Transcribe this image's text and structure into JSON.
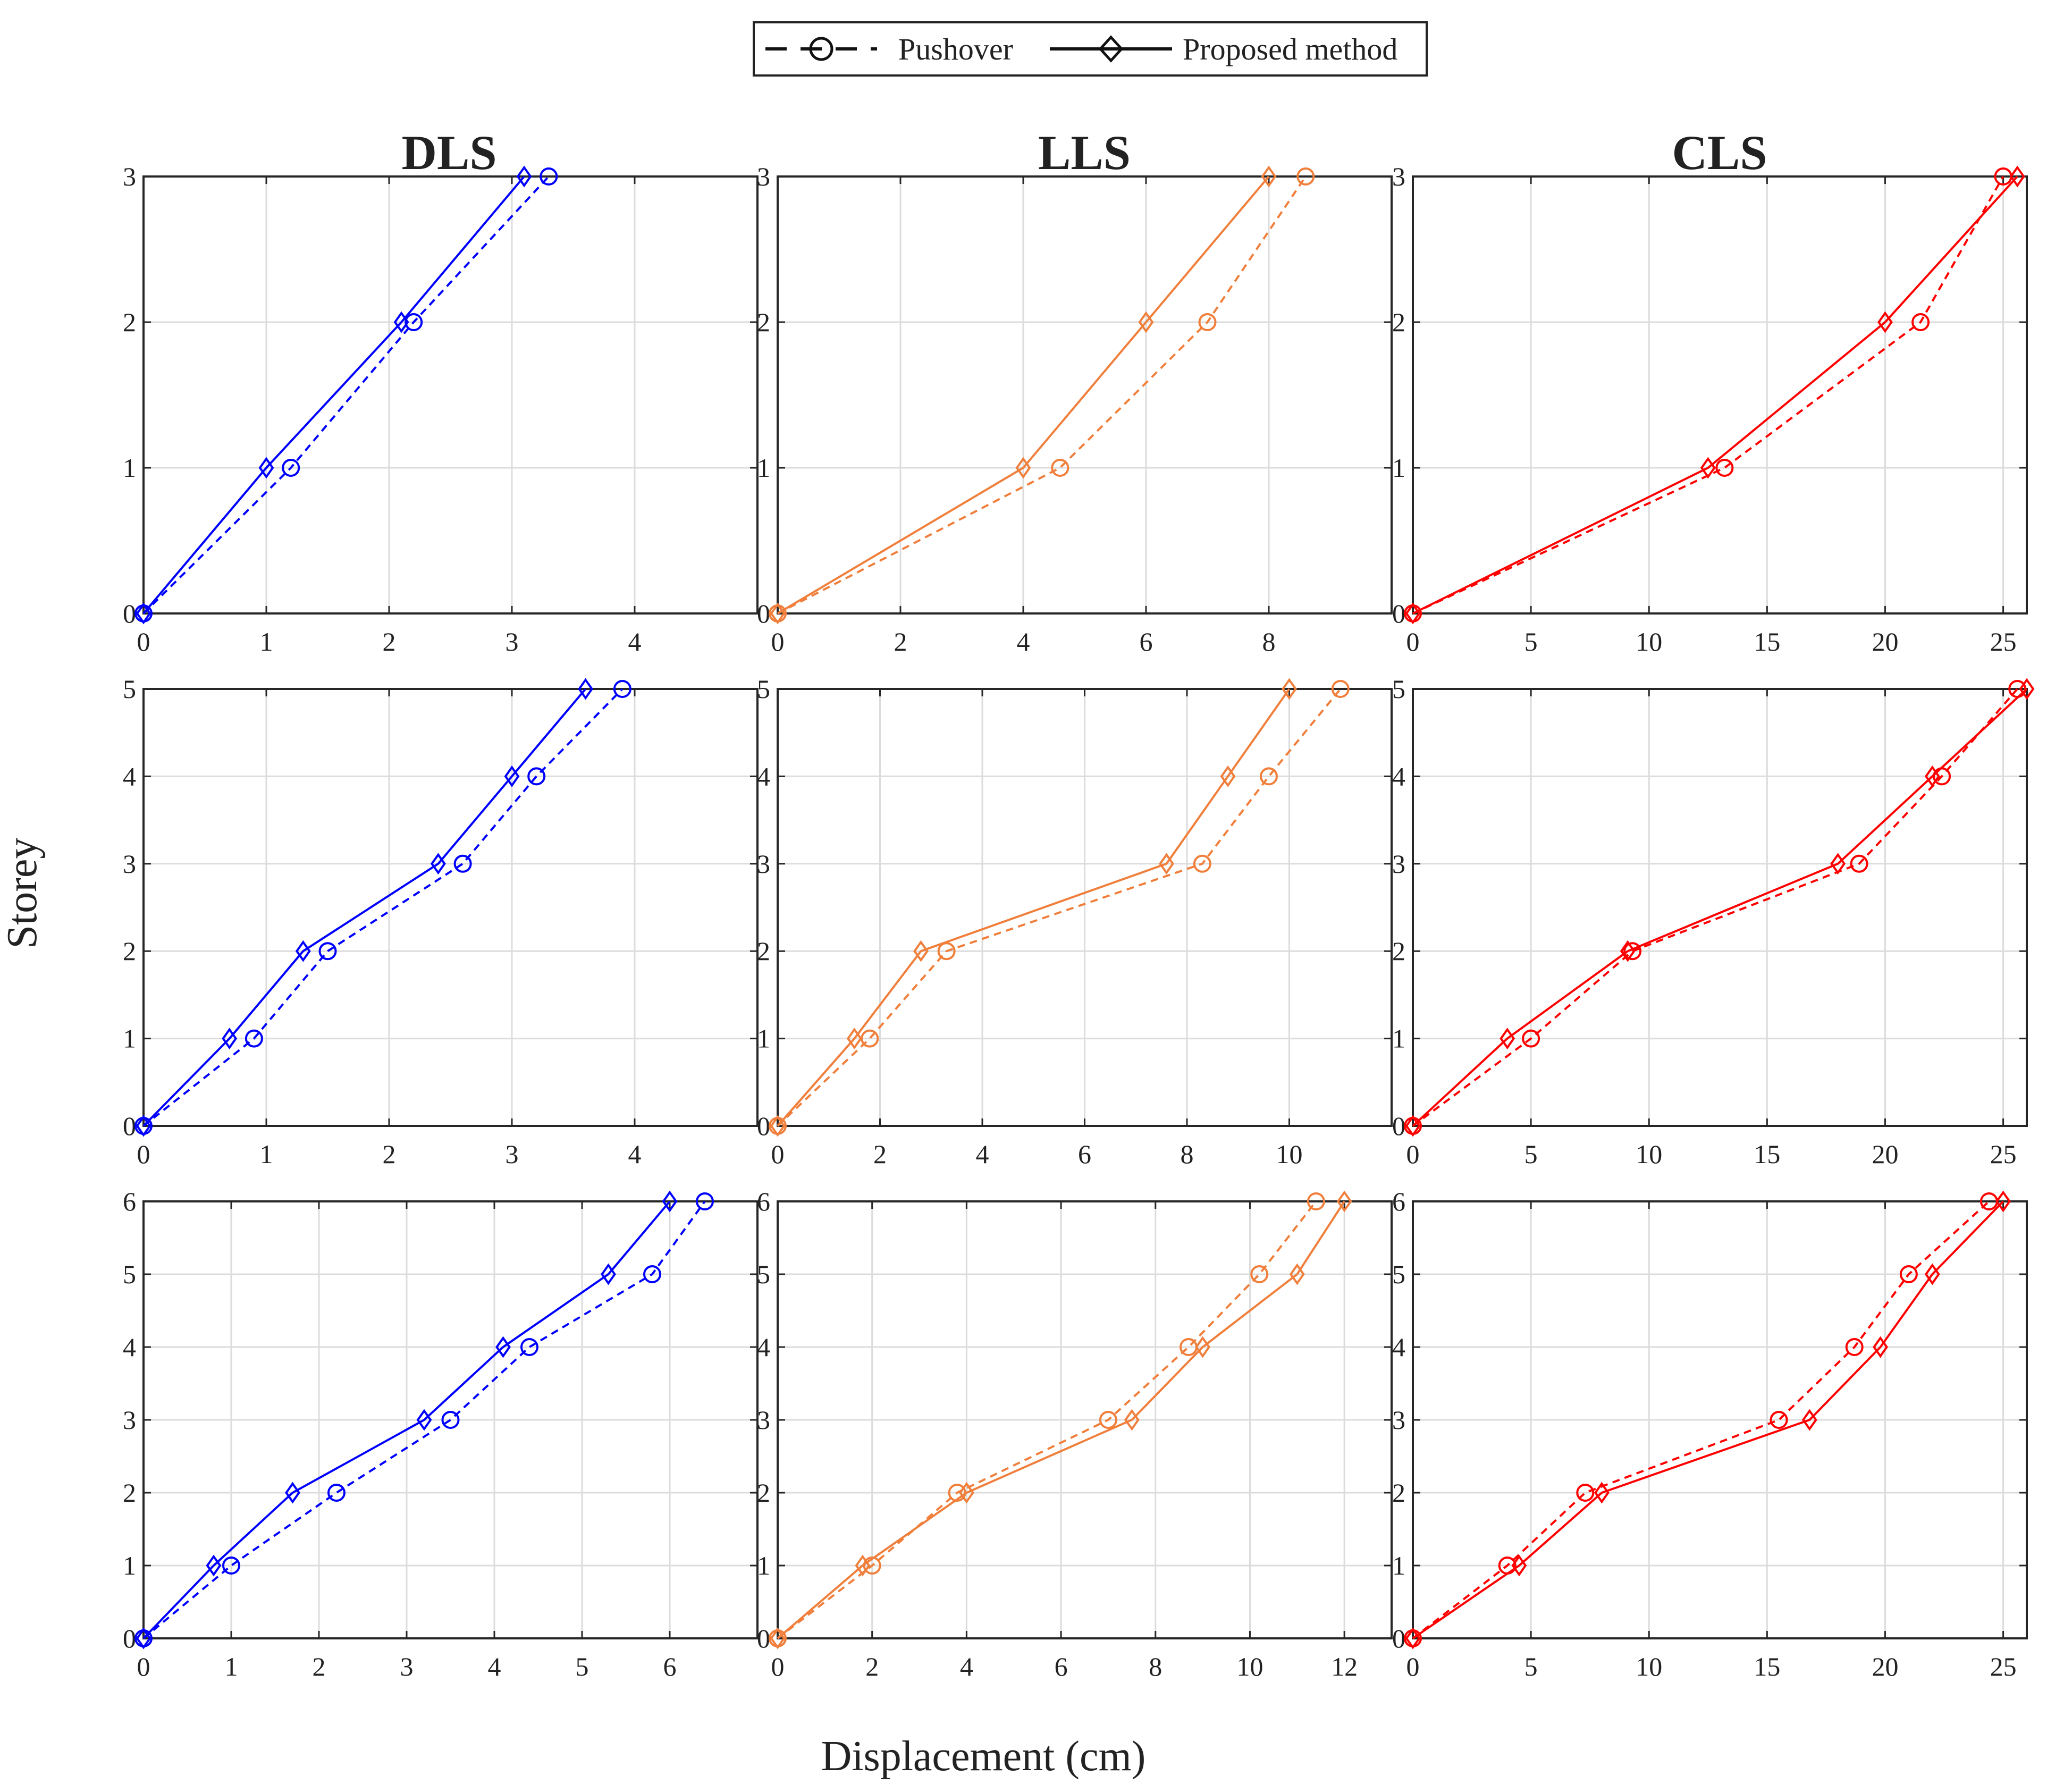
{
  "legend": [
    {
      "label": "Pushover",
      "style": "dashed",
      "marker": "circle"
    },
    {
      "label": "Proposed method",
      "style": "solid",
      "marker": "diamond"
    }
  ],
  "columns": [
    {
      "title": "DLS",
      "color": "#0000ff"
    },
    {
      "title": "LLS",
      "color": "#f07f3c"
    },
    {
      "title": "CLS",
      "color": "#ff0000"
    }
  ],
  "ylabel": "Storey",
  "xlabel": "Displacement (cm)",
  "chart_data": [
    {
      "type": "line",
      "row": 0,
      "col": 0,
      "xlim": [
        0,
        5
      ],
      "xticks": [
        0,
        1,
        2,
        3,
        4
      ],
      "ylim": [
        0,
        3
      ],
      "yticks": [
        0,
        1,
        2,
        3
      ],
      "series": [
        {
          "name": "Pushover",
          "x": [
            0,
            1.2,
            2.2,
            3.3
          ],
          "y": [
            0,
            1,
            2,
            3
          ]
        },
        {
          "name": "Proposed method",
          "x": [
            0,
            1.0,
            2.1,
            3.1
          ],
          "y": [
            0,
            1,
            2,
            3
          ]
        }
      ]
    },
    {
      "type": "line",
      "row": 0,
      "col": 1,
      "xlim": [
        0,
        10
      ],
      "xticks": [
        0,
        2,
        4,
        6,
        8
      ],
      "ylim": [
        0,
        3
      ],
      "yticks": [
        0,
        1,
        2,
        3
      ],
      "series": [
        {
          "name": "Pushover",
          "x": [
            0,
            4.6,
            7.0,
            8.6
          ],
          "y": [
            0,
            1,
            2,
            3
          ]
        },
        {
          "name": "Proposed method",
          "x": [
            0,
            4.0,
            6.0,
            8.0
          ],
          "y": [
            0,
            1,
            2,
            3
          ]
        }
      ]
    },
    {
      "type": "line",
      "row": 0,
      "col": 2,
      "xlim": [
        0,
        26
      ],
      "xticks": [
        0,
        5,
        10,
        15,
        20,
        25
      ],
      "ylim": [
        0,
        3
      ],
      "yticks": [
        0,
        1,
        2,
        3
      ],
      "series": [
        {
          "name": "Pushover",
          "x": [
            0,
            13.2,
            21.5,
            25.0
          ],
          "y": [
            0,
            1,
            2,
            3
          ]
        },
        {
          "name": "Proposed method",
          "x": [
            0,
            12.5,
            20.0,
            25.6
          ],
          "y": [
            0,
            1,
            2,
            3
          ]
        }
      ]
    },
    {
      "type": "line",
      "row": 1,
      "col": 0,
      "xlim": [
        0,
        5
      ],
      "xticks": [
        0,
        1,
        2,
        3,
        4
      ],
      "ylim": [
        0,
        5
      ],
      "yticks": [
        0,
        1,
        2,
        3,
        4,
        5
      ],
      "series": [
        {
          "name": "Pushover",
          "x": [
            0,
            0.9,
            1.5,
            2.6,
            3.2,
            3.9
          ],
          "y": [
            0,
            1,
            2,
            3,
            4,
            5
          ]
        },
        {
          "name": "Proposed method",
          "x": [
            0,
            0.7,
            1.3,
            2.4,
            3.0,
            3.6
          ],
          "y": [
            0,
            1,
            2,
            3,
            4,
            5
          ]
        }
      ]
    },
    {
      "type": "line",
      "row": 1,
      "col": 1,
      "xlim": [
        0,
        12
      ],
      "xticks": [
        0,
        2,
        4,
        6,
        8,
        10
      ],
      "ylim": [
        0,
        5
      ],
      "yticks": [
        0,
        1,
        2,
        3,
        4,
        5
      ],
      "series": [
        {
          "name": "Pushover",
          "x": [
            0,
            1.8,
            3.3,
            8.3,
            9.6,
            11.0
          ],
          "y": [
            0,
            1,
            2,
            3,
            4,
            5
          ]
        },
        {
          "name": "Proposed method",
          "x": [
            0,
            1.5,
            2.8,
            7.6,
            8.8,
            10.0
          ],
          "y": [
            0,
            1,
            2,
            3,
            4,
            5
          ]
        }
      ]
    },
    {
      "type": "line",
      "row": 1,
      "col": 2,
      "xlim": [
        0,
        26
      ],
      "xticks": [
        0,
        5,
        10,
        15,
        20,
        25
      ],
      "ylim": [
        0,
        5
      ],
      "yticks": [
        0,
        1,
        2,
        3,
        4,
        5
      ],
      "series": [
        {
          "name": "Pushover",
          "x": [
            0,
            5.0,
            9.3,
            18.9,
            22.4,
            25.6
          ],
          "y": [
            0,
            1,
            2,
            3,
            4,
            5
          ]
        },
        {
          "name": "Proposed method",
          "x": [
            0,
            4.0,
            9.1,
            18.0,
            22.0,
            26.0
          ],
          "y": [
            0,
            1,
            2,
            3,
            4,
            5
          ]
        }
      ]
    },
    {
      "type": "line",
      "row": 2,
      "col": 0,
      "xlim": [
        0,
        7
      ],
      "xticks": [
        0,
        1,
        2,
        3,
        4,
        5,
        6
      ],
      "ylim": [
        0,
        6
      ],
      "yticks": [
        0,
        1,
        2,
        3,
        4,
        5,
        6
      ],
      "series": [
        {
          "name": "Pushover",
          "x": [
            0,
            1.0,
            2.2,
            3.5,
            4.4,
            5.8,
            6.4
          ],
          "y": [
            0,
            1,
            2,
            3,
            4,
            5,
            6
          ]
        },
        {
          "name": "Proposed method",
          "x": [
            0,
            0.8,
            1.7,
            3.2,
            4.1,
            5.3,
            6.0
          ],
          "y": [
            0,
            1,
            2,
            3,
            4,
            5,
            6
          ]
        }
      ]
    },
    {
      "type": "line",
      "row": 2,
      "col": 1,
      "xlim": [
        0,
        13
      ],
      "xticks": [
        0,
        2,
        4,
        6,
        8,
        10,
        12
      ],
      "ylim": [
        0,
        6
      ],
      "yticks": [
        0,
        1,
        2,
        3,
        4,
        5,
        6
      ],
      "series": [
        {
          "name": "Pushover",
          "x": [
            0,
            2.0,
            3.8,
            7.0,
            8.7,
            10.2,
            11.4
          ],
          "y": [
            0,
            1,
            2,
            3,
            4,
            5,
            6
          ]
        },
        {
          "name": "Proposed method",
          "x": [
            0,
            1.8,
            4.0,
            7.5,
            9.0,
            11.0,
            12.0
          ],
          "y": [
            0,
            1,
            2,
            3,
            4,
            5,
            6
          ]
        }
      ]
    },
    {
      "type": "line",
      "row": 2,
      "col": 2,
      "xlim": [
        0,
        26
      ],
      "xticks": [
        0,
        5,
        10,
        15,
        20,
        25
      ],
      "ylim": [
        0,
        6
      ],
      "yticks": [
        0,
        1,
        2,
        3,
        4,
        5,
        6
      ],
      "series": [
        {
          "name": "Pushover",
          "x": [
            0,
            4.0,
            7.3,
            15.5,
            18.7,
            21.0,
            24.4
          ],
          "y": [
            0,
            1,
            2,
            3,
            4,
            5,
            6
          ]
        },
        {
          "name": "Proposed method",
          "x": [
            0,
            4.5,
            8.0,
            16.8,
            19.8,
            22.0,
            25.0
          ],
          "y": [
            0,
            1,
            2,
            3,
            4,
            5,
            6
          ]
        }
      ]
    }
  ]
}
